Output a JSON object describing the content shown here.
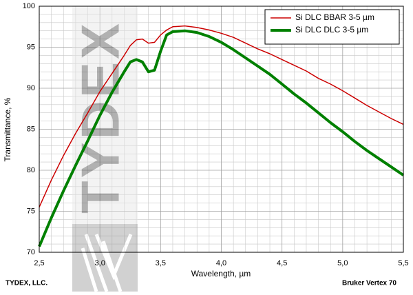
{
  "chart_data": {
    "type": "line",
    "xlabel": "Wavelength, µm",
    "ylabel": "Transmittance, %",
    "footer_left": "TYDEX, LLC.",
    "footer_right": "Bruker Vertex 70",
    "watermark": "TYDEX",
    "x": [
      2.5,
      2.6,
      2.7,
      2.8,
      2.9,
      3.0,
      3.1,
      3.2,
      3.25,
      3.3,
      3.35,
      3.4,
      3.45,
      3.5,
      3.55,
      3.6,
      3.7,
      3.8,
      3.9,
      4.0,
      4.1,
      4.2,
      4.3,
      4.4,
      4.5,
      4.6,
      4.7,
      4.8,
      4.9,
      5.0,
      5.1,
      5.2,
      5.3,
      5.4,
      5.5
    ],
    "series": [
      {
        "name": "Si DLC BBAR 3-5 µm",
        "color": "#cc0000",
        "line_width": 1.5,
        "values": [
          75.5,
          78.8,
          81.8,
          84.5,
          87.0,
          89.6,
          91.8,
          94.0,
          95.2,
          95.9,
          96.0,
          95.5,
          95.6,
          96.5,
          97.1,
          97.5,
          97.6,
          97.4,
          97.1,
          96.7,
          96.2,
          95.5,
          94.8,
          94.2,
          93.5,
          92.8,
          92.1,
          91.2,
          90.5,
          89.7,
          88.8,
          87.9,
          87.1,
          86.3,
          85.6
        ]
      },
      {
        "name": "Si DLC DLC 3-5 µm",
        "color": "#008000",
        "line_width": 4,
        "values": [
          70.7,
          74.2,
          77.5,
          80.6,
          83.6,
          86.7,
          89.5,
          92.0,
          93.2,
          93.5,
          93.2,
          92.0,
          92.2,
          94.5,
          96.5,
          96.9,
          97.0,
          96.8,
          96.3,
          95.6,
          94.7,
          93.7,
          92.7,
          91.7,
          90.5,
          89.3,
          88.2,
          87.0,
          85.8,
          84.7,
          83.5,
          82.4,
          81.4,
          80.4,
          79.4
        ]
      }
    ],
    "xlim": [
      2.5,
      5.5
    ],
    "xticks": [
      {
        "value": 2.5,
        "label": "2,5"
      },
      {
        "value": 3.0,
        "label": "3,0"
      },
      {
        "value": 3.5,
        "label": "3,5"
      },
      {
        "value": 4.0,
        "label": "4,0"
      },
      {
        "value": 4.5,
        "label": "4,5"
      },
      {
        "value": 5.0,
        "label": "5,0"
      },
      {
        "value": 5.5,
        "label": "5,5"
      }
    ],
    "ylim": [
      70,
      100
    ],
    "yticks": [
      70,
      75,
      80,
      85,
      90,
      95,
      100
    ],
    "grid": true,
    "legend": "top-right"
  }
}
